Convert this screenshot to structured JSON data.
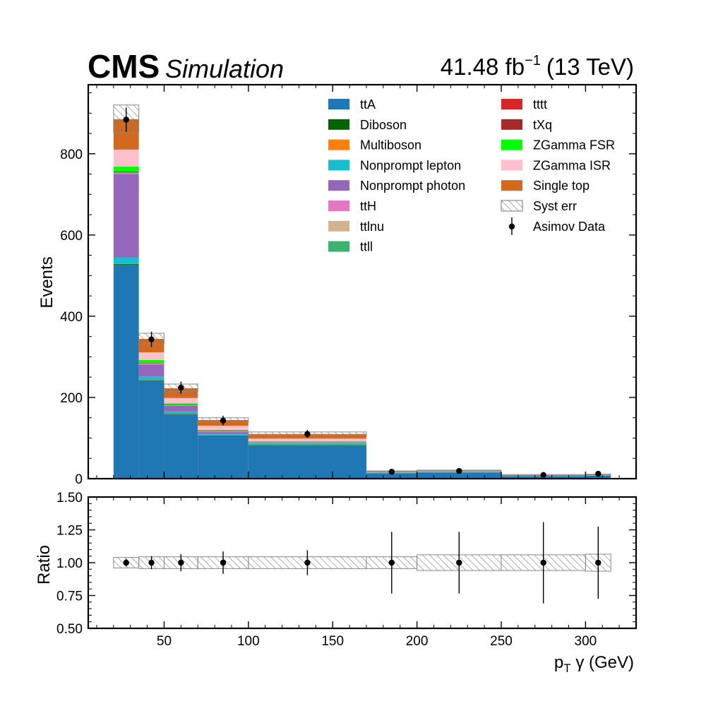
{
  "header": {
    "experiment": "CMS",
    "label": "Simulation",
    "lumi_value": "41.48 fb",
    "lumi_exp": "−1",
    "lumi_energy": "(13 TeV)"
  },
  "chart_data": {
    "type": "bar",
    "stacked": true,
    "x_edges": [
      20,
      35,
      50,
      70,
      100,
      170,
      200,
      250,
      300,
      315
    ],
    "xlim": [
      5,
      330
    ],
    "x_ticks": [
      50,
      100,
      150,
      200,
      250,
      300
    ],
    "main": {
      "ylabel": "Events",
      "ylim": [
        0,
        970
      ],
      "y_ticks": [
        0,
        200,
        400,
        600,
        800
      ],
      "series": [
        {
          "name": "ttA",
          "color": "#1f77b4",
          "values": [
            527,
            242,
            158,
            105,
            82,
            13,
            15,
            6,
            7
          ]
        },
        {
          "name": "Diboson",
          "color": "#006400",
          "values": [
            2,
            1,
            1,
            1,
            1,
            0.3,
            0.3,
            0.2,
            0.2
          ]
        },
        {
          "name": "Multiboson",
          "color": "#ff7f0e",
          "values": [
            1,
            0.5,
            0.5,
            0.3,
            0.2,
            0.1,
            0.1,
            0.1,
            0.1
          ]
        },
        {
          "name": "Nonprompt lepton",
          "color": "#17becf",
          "values": [
            15,
            8,
            6,
            4,
            4,
            1,
            1,
            0.5,
            0.5
          ]
        },
        {
          "name": "Nonprompt photon",
          "color": "#9467bd",
          "values": [
            205,
            30,
            14,
            5,
            1,
            0.5,
            0.5,
            0.3,
            0.3
          ]
        },
        {
          "name": "ttH",
          "color": "#e377c2",
          "values": [
            1,
            0.5,
            0.5,
            0.5,
            0.3,
            0.1,
            0.1,
            0.1,
            0.1
          ]
        },
        {
          "name": "ttlnu",
          "color": "#d2b48c",
          "values": [
            1,
            1,
            0.5,
            0.5,
            0.3,
            0.1,
            0.1,
            0.1,
            0.1
          ]
        },
        {
          "name": "ttll",
          "color": "#3cb371",
          "values": [
            2,
            1,
            1,
            1,
            1,
            0.2,
            0.2,
            0.1,
            0.1
          ]
        },
        {
          "name": "tttt",
          "color": "#d62728",
          "values": [
            0.3,
            0.2,
            0.1,
            0.1,
            0.1,
            0.05,
            0.05,
            0.05,
            0.05
          ]
        },
        {
          "name": "tXq",
          "color": "#a52a2a",
          "values": [
            2,
            1,
            1,
            1,
            1,
            0.2,
            0.2,
            0.1,
            0.1
          ]
        },
        {
          "name": "ZGamma FSR",
          "color": "#00ff00",
          "values": [
            12,
            7,
            3,
            2,
            1,
            0.3,
            0.3,
            0.1,
            0.1
          ]
        },
        {
          "name": "ZGamma ISR",
          "color": "#ffc0cb",
          "values": [
            42,
            19,
            13,
            10,
            7,
            1,
            1,
            0.5,
            0.5
          ]
        },
        {
          "name": "Single top",
          "color": "#d2691e",
          "values": [
            75,
            33,
            24,
            14,
            11,
            1.5,
            1.5,
            0.8,
            0.8
          ]
        }
      ],
      "totals": [
        886,
        345,
        224,
        145,
        110,
        18,
        20,
        9,
        10
      ],
      "syst_err_up": [
        920,
        358,
        233,
        150,
        115,
        19,
        21,
        10,
        11
      ],
      "syst_err_label": "Syst err",
      "data": {
        "name": "Asimov Data",
        "x": [
          27.5,
          42.5,
          60,
          85,
          135,
          185,
          225,
          275,
          307.5
        ],
        "y": [
          884,
          343,
          224,
          143,
          110,
          17,
          19,
          9,
          12
        ],
        "err": [
          30,
          19,
          15,
          12,
          10,
          4,
          4.5,
          3,
          3.5
        ]
      }
    },
    "ratio": {
      "ylabel": "Ratio",
      "ylim": [
        0.5,
        1.5
      ],
      "y_ticks": [
        "0.50",
        "0.75",
        "1.00",
        "1.25",
        "1.50"
      ],
      "band_half_width": [
        0.04,
        0.045,
        0.045,
        0.045,
        0.045,
        0.045,
        0.06,
        0.06,
        0.065
      ],
      "values": [
        1.0,
        1.0,
        1.0,
        1.0,
        1.0,
        1.0,
        1.0,
        1.0,
        1.0
      ],
      "err": [
        0.03,
        0.05,
        0.065,
        0.085,
        0.095,
        0.235,
        0.235,
        0.31,
        0.275
      ]
    },
    "xlabel_main": "p",
    "xlabel_sub": "T",
    "xlabel_rest": " γ (GeV)",
    "legend_position": "top-right"
  }
}
